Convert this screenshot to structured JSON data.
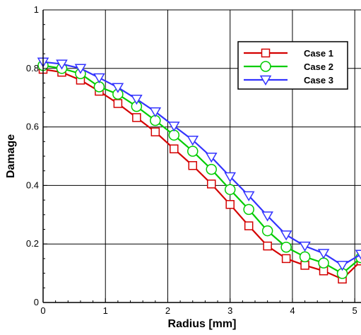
{
  "chart_data": {
    "type": "line",
    "title": "",
    "xlabel": "Radius [mm]",
    "ylabel": "Damage",
    "xlim": [
      0,
      5.1
    ],
    "ylim": [
      0,
      1
    ],
    "xticks": [
      0,
      1,
      2,
      3,
      4,
      5
    ],
    "yticks": [
      0,
      0.2,
      0.4,
      0.6,
      0.8,
      1
    ],
    "grid": true,
    "legend_position": "top-right",
    "x": [
      0,
      0.3,
      0.6,
      0.9,
      1.2,
      1.5,
      1.8,
      2.1,
      2.4,
      2.7,
      3.0,
      3.3,
      3.6,
      3.9,
      4.2,
      4.5,
      4.8,
      5.1
    ],
    "series": [
      {
        "name": "Case 1",
        "color": "#d40000",
        "marker": "square",
        "values": [
          0.797,
          0.787,
          0.76,
          0.722,
          0.68,
          0.632,
          0.583,
          0.525,
          0.468,
          0.405,
          0.335,
          0.262,
          0.193,
          0.15,
          0.127,
          0.108,
          0.08,
          0.142
        ]
      },
      {
        "name": "Case 2",
        "color": "#00cc00",
        "marker": "circle",
        "values": [
          0.81,
          0.8,
          0.782,
          0.737,
          0.712,
          0.67,
          0.622,
          0.572,
          0.517,
          0.455,
          0.386,
          0.318,
          0.245,
          0.189,
          0.156,
          0.135,
          0.099,
          0.153
        ]
      },
      {
        "name": "Case 3",
        "color": "#3333ff",
        "marker": "triangle-down",
        "values": [
          0.822,
          0.815,
          0.8,
          0.768,
          0.735,
          0.695,
          0.652,
          0.603,
          0.555,
          0.497,
          0.43,
          0.365,
          0.296,
          0.231,
          0.193,
          0.168,
          0.127,
          0.165
        ]
      }
    ]
  }
}
